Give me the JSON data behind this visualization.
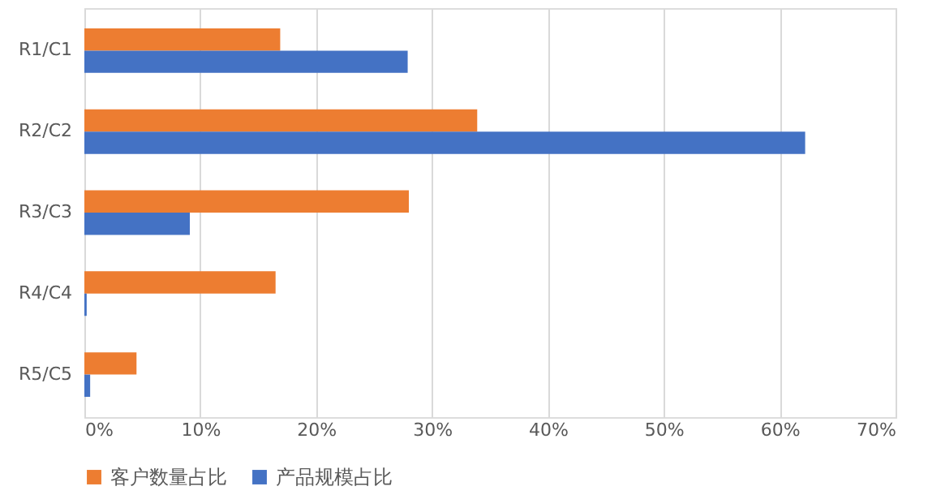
{
  "chart_data": {
    "type": "bar",
    "orientation": "horizontal",
    "categories": [
      "R1/C1",
      "R2/C2",
      "R3/C3",
      "R4/C4",
      "R5/C5"
    ],
    "series": [
      {
        "name": "客户数量占比",
        "color": "#ed7d31",
        "values": [
          16.9,
          33.9,
          28.0,
          16.5,
          4.5
        ]
      },
      {
        "name": "产品规模占比",
        "color": "#4472c4",
        "values": [
          27.9,
          62.2,
          9.1,
          0.2,
          0.5
        ]
      }
    ],
    "xlim": [
      0,
      70
    ],
    "xticks": [
      {
        "value": 0,
        "label": "0%"
      },
      {
        "value": 10,
        "label": "10%"
      },
      {
        "value": 20,
        "label": "20%"
      },
      {
        "value": 30,
        "label": "30%"
      },
      {
        "value": 40,
        "label": "40%"
      },
      {
        "value": 50,
        "label": "50%"
      },
      {
        "value": 60,
        "label": "60%"
      },
      {
        "value": 70,
        "label": "70%"
      }
    ],
    "grid": "x",
    "legend": "bottom"
  }
}
